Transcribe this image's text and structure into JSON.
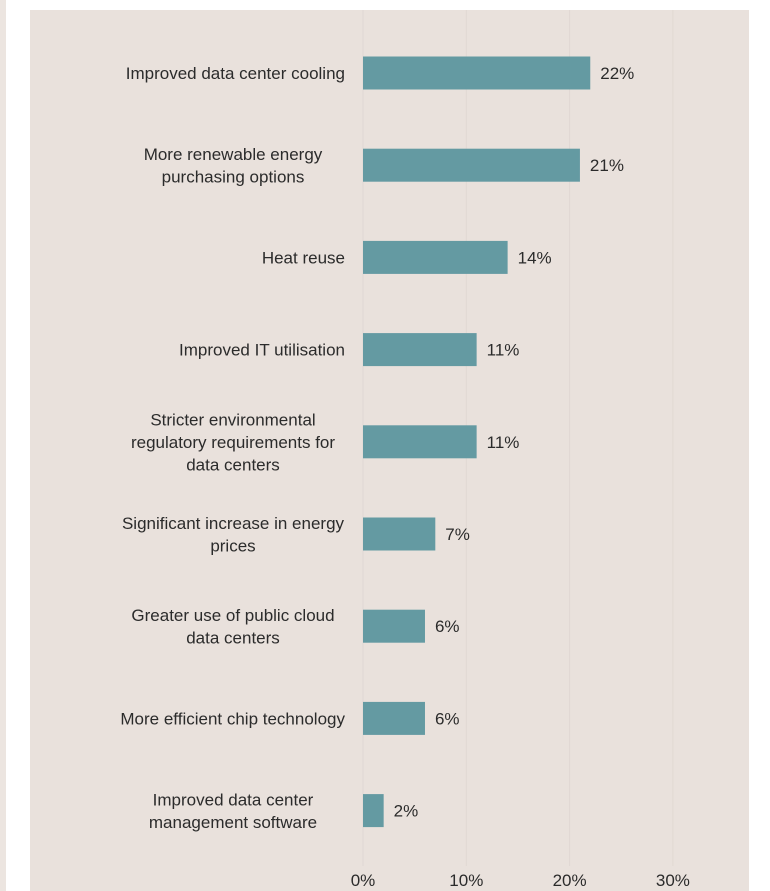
{
  "chart_data": {
    "type": "bar",
    "orientation": "horizontal",
    "title": "",
    "xlabel": "",
    "ylabel": "",
    "xlim": [
      0,
      30
    ],
    "x_ticks": [
      "0%",
      "10%",
      "20%",
      "30%"
    ],
    "grid": true,
    "bar_color": "#649aa2",
    "categories": [
      [
        "Improved data center cooling"
      ],
      [
        "More renewable energy",
        "purchasing options"
      ],
      [
        "Heat reuse"
      ],
      [
        "Improved IT utilisation"
      ],
      [
        "Stricter environmental",
        "regulatory requirements for",
        "data centers"
      ],
      [
        "Significant increase in energy",
        "prices"
      ],
      [
        "Greater use of public cloud",
        "data centers"
      ],
      [
        "More efficient chip technology"
      ],
      [
        "Improved data center",
        "management software"
      ]
    ],
    "values": [
      22,
      21,
      14,
      11,
      11,
      7,
      6,
      6,
      2
    ],
    "value_labels": [
      "22%",
      "21%",
      "14%",
      "11%",
      "11%",
      "7%",
      "6%",
      "6%",
      "2%"
    ]
  }
}
